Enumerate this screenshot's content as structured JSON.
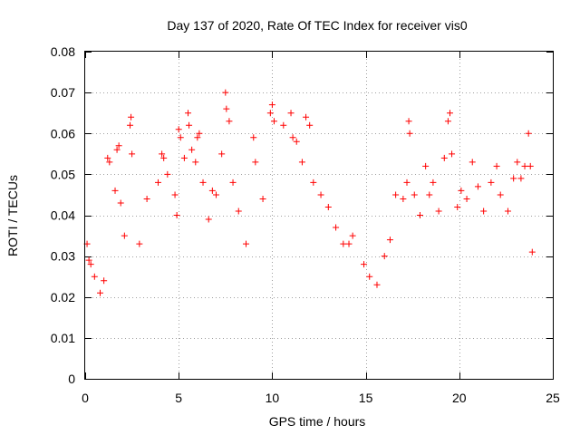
{
  "chart_data": {
    "type": "scatter",
    "title": "Day 137 of 2020, Rate Of TEC Index for receiver vis0",
    "xlabel": "GPS time / hours",
    "ylabel": "ROTI / TECUs",
    "xlim": [
      0,
      25
    ],
    "ylim": [
      0,
      0.08
    ],
    "x_ticks": [
      "0",
      "5",
      "10",
      "15",
      "20",
      "25"
    ],
    "y_ticks": [
      "0",
      "0.01",
      "0.02",
      "0.03",
      "0.04",
      "0.05",
      "0.06",
      "0.07",
      "0.08"
    ],
    "grid": true,
    "marker": "+",
    "color": "#ff0000",
    "series": [
      {
        "points": [
          [
            0.1,
            0.033
          ],
          [
            0.2,
            0.029
          ],
          [
            0.3,
            0.028
          ],
          [
            0.5,
            0.025
          ],
          [
            0.8,
            0.021
          ],
          [
            1.0,
            0.024
          ],
          [
            1.2,
            0.054
          ],
          [
            1.3,
            0.053
          ],
          [
            1.6,
            0.046
          ],
          [
            1.7,
            0.056
          ],
          [
            1.8,
            0.057
          ],
          [
            1.9,
            0.043
          ],
          [
            2.1,
            0.035
          ],
          [
            2.4,
            0.062
          ],
          [
            2.45,
            0.064
          ],
          [
            2.5,
            0.055
          ],
          [
            2.9,
            0.033
          ],
          [
            3.3,
            0.044
          ],
          [
            3.9,
            0.048
          ],
          [
            4.1,
            0.055
          ],
          [
            4.2,
            0.054
          ],
          [
            4.4,
            0.05
          ],
          [
            4.8,
            0.045
          ],
          [
            4.9,
            0.04
          ],
          [
            5.0,
            0.061
          ],
          [
            5.1,
            0.059
          ],
          [
            5.3,
            0.054
          ],
          [
            5.5,
            0.065
          ],
          [
            5.55,
            0.062
          ],
          [
            5.7,
            0.056
          ],
          [
            5.9,
            0.053
          ],
          [
            6.0,
            0.059
          ],
          [
            6.1,
            0.06
          ],
          [
            6.3,
            0.048
          ],
          [
            6.6,
            0.039
          ],
          [
            6.8,
            0.046
          ],
          [
            7.0,
            0.045
          ],
          [
            7.3,
            0.055
          ],
          [
            7.5,
            0.07
          ],
          [
            7.55,
            0.066
          ],
          [
            7.7,
            0.063
          ],
          [
            7.9,
            0.048
          ],
          [
            8.2,
            0.041
          ],
          [
            8.6,
            0.033
          ],
          [
            9.0,
            0.059
          ],
          [
            9.1,
            0.053
          ],
          [
            9.5,
            0.044
          ],
          [
            9.9,
            0.065
          ],
          [
            10.0,
            0.067
          ],
          [
            10.1,
            0.063
          ],
          [
            10.6,
            0.062
          ],
          [
            11.0,
            0.065
          ],
          [
            11.1,
            0.059
          ],
          [
            11.3,
            0.058
          ],
          [
            11.6,
            0.053
          ],
          [
            11.8,
            0.064
          ],
          [
            12.0,
            0.062
          ],
          [
            12.2,
            0.048
          ],
          [
            12.6,
            0.045
          ],
          [
            13.0,
            0.042
          ],
          [
            13.4,
            0.037
          ],
          [
            13.8,
            0.033
          ],
          [
            14.1,
            0.033
          ],
          [
            14.3,
            0.035
          ],
          [
            14.9,
            0.028
          ],
          [
            15.2,
            0.025
          ],
          [
            15.6,
            0.023
          ],
          [
            16.0,
            0.03
          ],
          [
            16.3,
            0.034
          ],
          [
            16.6,
            0.045
          ],
          [
            17.0,
            0.044
          ],
          [
            17.2,
            0.048
          ],
          [
            17.3,
            0.063
          ],
          [
            17.35,
            0.06
          ],
          [
            17.6,
            0.045
          ],
          [
            17.9,
            0.04
          ],
          [
            18.2,
            0.052
          ],
          [
            18.4,
            0.045
          ],
          [
            18.6,
            0.048
          ],
          [
            18.9,
            0.041
          ],
          [
            19.2,
            0.054
          ],
          [
            19.4,
            0.063
          ],
          [
            19.5,
            0.065
          ],
          [
            19.6,
            0.055
          ],
          [
            19.9,
            0.042
          ],
          [
            20.1,
            0.046
          ],
          [
            20.4,
            0.044
          ],
          [
            20.7,
            0.053
          ],
          [
            21.0,
            0.047
          ],
          [
            21.3,
            0.041
          ],
          [
            21.7,
            0.048
          ],
          [
            22.0,
            0.052
          ],
          [
            22.2,
            0.045
          ],
          [
            22.6,
            0.041
          ],
          [
            22.9,
            0.049
          ],
          [
            23.1,
            0.053
          ],
          [
            23.3,
            0.049
          ],
          [
            23.5,
            0.052
          ],
          [
            23.7,
            0.06
          ],
          [
            23.8,
            0.052
          ],
          [
            23.9,
            0.031
          ]
        ]
      }
    ]
  }
}
